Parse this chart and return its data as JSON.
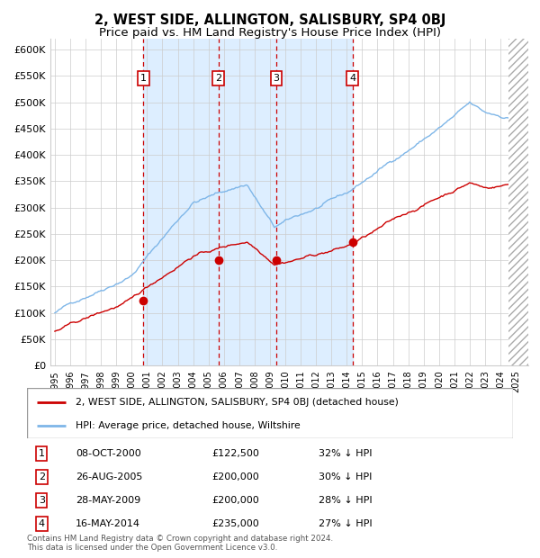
{
  "title": "2, WEST SIDE, ALLINGTON, SALISBURY, SP4 0BJ",
  "subtitle": "Price paid vs. HM Land Registry's House Price Index (HPI)",
  "title_fontsize": 10.5,
  "subtitle_fontsize": 9.5,
  "ylabel_ticks": [
    "£0",
    "£50K",
    "£100K",
    "£150K",
    "£200K",
    "£250K",
    "£300K",
    "£350K",
    "£400K",
    "£450K",
    "£500K",
    "£550K",
    "£600K"
  ],
  "ytick_values": [
    0,
    50000,
    100000,
    150000,
    200000,
    250000,
    300000,
    350000,
    400000,
    450000,
    500000,
    550000,
    600000
  ],
  "ylim": [
    0,
    620000
  ],
  "hpi_color": "#7eb6e8",
  "price_color": "#cc0000",
  "bg_shade_color": "#ddeeff",
  "grid_color": "#cccccc",
  "purchases": [
    {
      "label": "1",
      "date_x": 2000.77,
      "price": 122500,
      "date_str": "08-OCT-2000",
      "price_str": "£122,500",
      "hpi_str": "32% ↓ HPI"
    },
    {
      "label": "2",
      "date_x": 2005.65,
      "price": 200000,
      "date_str": "26-AUG-2005",
      "price_str": "£200,000",
      "hpi_str": "30% ↓ HPI"
    },
    {
      "label": "3",
      "date_x": 2009.4,
      "price": 200000,
      "date_str": "28-MAY-2009",
      "price_str": "£200,000",
      "hpi_str": "28% ↓ HPI"
    },
    {
      "label": "4",
      "date_x": 2014.37,
      "price": 235000,
      "date_str": "16-MAY-2014",
      "price_str": "£235,000",
      "hpi_str": "27% ↓ HPI"
    }
  ],
  "legend_line1": "2, WEST SIDE, ALLINGTON, SALISBURY, SP4 0BJ (detached house)",
  "legend_line2": "HPI: Average price, detached house, Wiltshire",
  "footnote": "Contains HM Land Registry data © Crown copyright and database right 2024.\nThis data is licensed under the Open Government Licence v3.0.",
  "xmin": 1994.7,
  "xmax": 2025.8
}
